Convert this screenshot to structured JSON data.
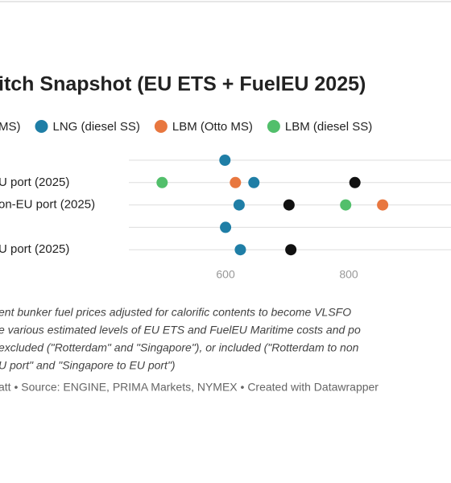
{
  "chart_data": {
    "type": "dot",
    "title": "itch Snapshot (EU ETS + FuelEU 2025)",
    "categories": [
      null,
      "U port (2025)",
      "on-EU port (2025)",
      null,
      "U port (2025)"
    ],
    "series": [
      {
        "name": "MS)",
        "color": "#111111",
        "values": [
          null,
          810,
          703,
          null,
          706
        ]
      },
      {
        "name": "LNG (diesel SS)",
        "color": "#1f7ea6",
        "values": [
          599,
          646,
          622,
          600,
          624
        ]
      },
      {
        "name": "LBM (Otto MS)",
        "color": "#e8773f",
        "values": [
          null,
          616,
          855,
          null,
          null
        ]
      },
      {
        "name": "LBM (diesel SS)",
        "color": "#52bf6b",
        "values": [
          null,
          497,
          795,
          null,
          null
        ]
      }
    ],
    "xlim": [
      443,
      966
    ],
    "xticks": [
      600,
      800
    ],
    "notes": [
      "ent bunker fuel prices adjusted for calorific contents to become VLSFO",
      "e various estimated levels of EU ETS and FuelEU Maritime costs and po",
      "excluded (\"Rotterdam\" and \"Singapore\"), or included (\"Rotterdam to non",
      "U port\" and \"Singapore to EU port\")"
    ],
    "source": "att • Source: ENGINE, PRIMA Markets, NYMEX • Created with Datawrapper"
  }
}
